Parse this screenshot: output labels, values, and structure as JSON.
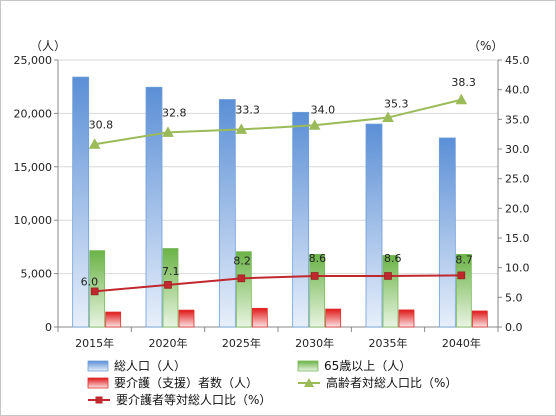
{
  "chart_data": {
    "type": "bar",
    "categories": [
      "2015年",
      "2020年",
      "2025年",
      "2030年",
      "2035年",
      "2040年"
    ],
    "y_left": {
      "unit": "（人）",
      "ylim": [
        0,
        25000
      ],
      "ticks": [
        "0",
        "5,000",
        "10,000",
        "15,000",
        "20,000",
        "25,000"
      ]
    },
    "y_right": {
      "unit": "（%）",
      "ylim": [
        0,
        45
      ],
      "ticks": [
        "0.0",
        "5.0",
        "10.0",
        "15.0",
        "20.0",
        "25.0",
        "30.0",
        "35.0",
        "40.0",
        "45.0"
      ]
    },
    "bar_series": [
      {
        "name": "総人口（人）",
        "values": [
          23400,
          22450,
          21300,
          20100,
          19000,
          17700
        ],
        "color": "#6f9fd8"
      },
      {
        "name": "65歳以上（人）",
        "values": [
          7150,
          7350,
          7050,
          6800,
          6700,
          6800
        ],
        "color": "#78b85a"
      },
      {
        "name": "要介護（支援）者数（人）",
        "values": [
          1400,
          1580,
          1750,
          1680,
          1600,
          1500
        ],
        "color": "#e03030"
      }
    ],
    "line_series": [
      {
        "name": "高齢者対総人口比（%）",
        "values": [
          30.8,
          32.8,
          33.3,
          34.0,
          35.3,
          38.3
        ],
        "labels": [
          "30.8",
          "32.8",
          "33.3",
          "34.0",
          "35.3",
          "38.3"
        ],
        "color": "#9bbb59",
        "marker": "triangle"
      },
      {
        "name": "要介護者等対総人口比（%）",
        "values": [
          6.0,
          7.1,
          8.2,
          8.6,
          8.6,
          8.7
        ],
        "labels": [
          "6.0",
          "7.1",
          "8.2",
          "8.6",
          "8.6",
          "8.7"
        ],
        "color": "#c0282e",
        "marker": "square"
      }
    ],
    "grid": true,
    "legend_position": "bottom"
  }
}
